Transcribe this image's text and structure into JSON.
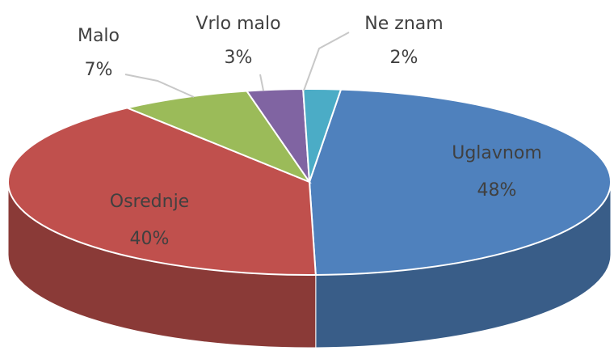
{
  "chart_data": {
    "type": "pie3d",
    "categories": [
      "Uglavnom",
      "Osrednje",
      "Malo",
      "Vrlo malo",
      "Ne znam"
    ],
    "values": [
      48,
      40,
      7,
      3,
      2
    ],
    "value_labels": [
      "48%",
      "40%",
      "7%",
      "3%",
      "2%"
    ],
    "colors": [
      "#4f81bd",
      "#c0504d",
      "#9bbb59",
      "#8064a2",
      "#4bacc6"
    ]
  }
}
